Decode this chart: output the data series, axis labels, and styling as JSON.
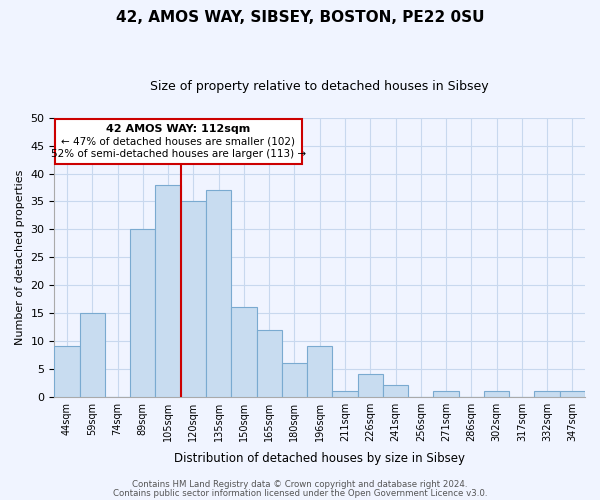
{
  "title": "42, AMOS WAY, SIBSEY, BOSTON, PE22 0SU",
  "subtitle": "Size of property relative to detached houses in Sibsey",
  "xlabel": "Distribution of detached houses by size in Sibsey",
  "ylabel": "Number of detached properties",
  "bar_color": "#c8dcf0",
  "bar_edge_color": "#7aaad0",
  "marker_line_color": "#cc0000",
  "marker_bin_index": 4,
  "categories": [
    "44sqm",
    "59sqm",
    "74sqm",
    "89sqm",
    "105sqm",
    "120sqm",
    "135sqm",
    "150sqm",
    "165sqm",
    "180sqm",
    "196sqm",
    "211sqm",
    "226sqm",
    "241sqm",
    "256sqm",
    "271sqm",
    "286sqm",
    "302sqm",
    "317sqm",
    "332sqm",
    "347sqm"
  ],
  "values": [
    9,
    15,
    0,
    30,
    38,
    35,
    37,
    16,
    12,
    6,
    9,
    1,
    4,
    2,
    0,
    1,
    0,
    1,
    0,
    1,
    1
  ],
  "ylim": [
    0,
    50
  ],
  "yticks": [
    0,
    5,
    10,
    15,
    20,
    25,
    30,
    35,
    40,
    45,
    50
  ],
  "annotation_title": "42 AMOS WAY: 112sqm",
  "annotation_line1": "← 47% of detached houses are smaller (102)",
  "annotation_line2": "52% of semi-detached houses are larger (113) →",
  "annotation_box_color": "#ffffff",
  "annotation_box_edge": "#cc0000",
  "background_color": "#f0f4ff",
  "grid_color": "#c8d8ee",
  "footer_line1": "Contains HM Land Registry data © Crown copyright and database right 2024.",
  "footer_line2": "Contains public sector information licensed under the Open Government Licence v3.0."
}
